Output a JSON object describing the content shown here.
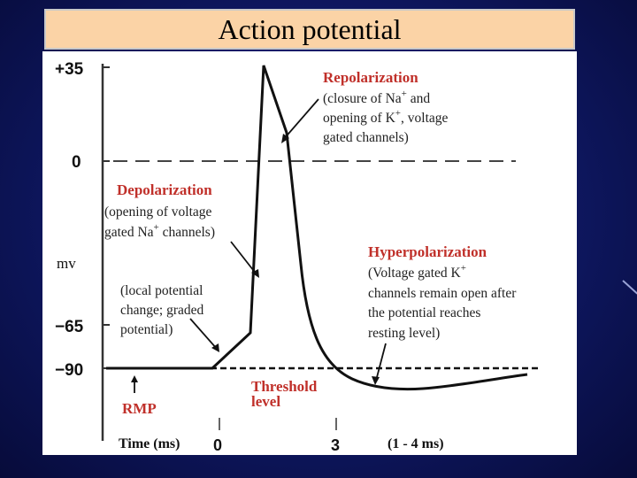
{
  "title": "Action potential",
  "axis": {
    "y_ticks": [
      "+35",
      "0",
      "mv",
      "−65",
      "−90"
    ],
    "x_title": "Time (ms)",
    "x_ticks": [
      "0",
      "3"
    ],
    "x_range_note": "(1 - 4 ms)"
  },
  "annotations": {
    "repolarization": {
      "heading": "Repolarization",
      "line1_pre": "(closure of Na",
      "line1_sup": "+",
      "line1_post": " and",
      "line2_pre": "opening of K",
      "line2_sup": "+",
      "line2_post": ", voltage",
      "line3": "gated channels)"
    },
    "depolarization": {
      "heading": "Depolarization",
      "line1": "(opening of voltage",
      "line2_pre": "gated Na",
      "line2_sup": "+",
      "line2_post": " channels)"
    },
    "local_potential": {
      "line1": "(local potential",
      "line2": "change; graded",
      "line3": "potential)"
    },
    "hyperpolarization": {
      "heading": "Hyperpolarization",
      "line1_pre": "(Voltage gated K",
      "line1_sup": "+",
      "line2": "channels remain open after",
      "line3": "the potential reaches",
      "line4": "resting level)"
    },
    "threshold": {
      "line1": "Threshold",
      "line2": "level"
    },
    "rmp": "RMP"
  },
  "colors": {
    "heading_red": "#c0302a",
    "title_bar": "#fbd3a6",
    "background": "#0e1760"
  }
}
